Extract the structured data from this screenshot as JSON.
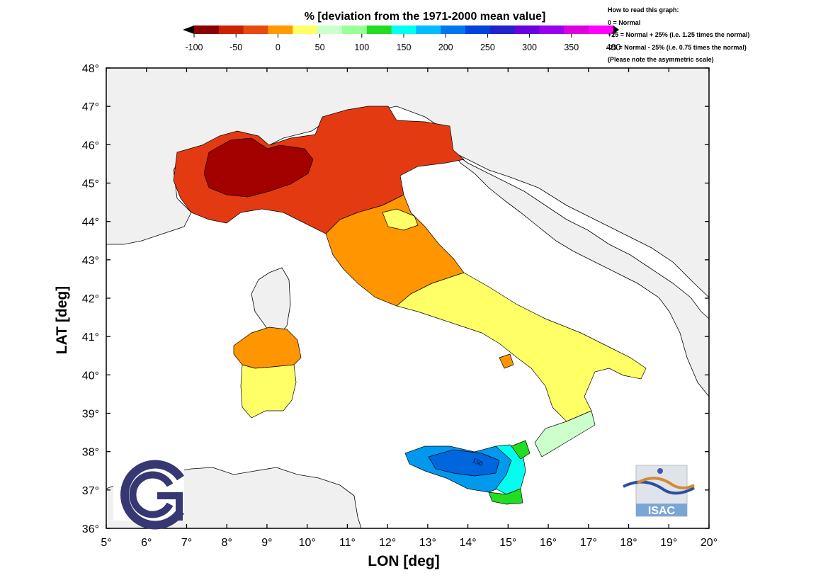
{
  "colorbar": {
    "title": "% [deviation from the 1971-2000 mean value]",
    "ticks": [
      "-100",
      "-50",
      "0",
      "50",
      "100",
      "150",
      "200",
      "250",
      "300",
      "350",
      "400"
    ],
    "colors": [
      "#8b0000",
      "#cc2200",
      "#e84a10",
      "#ff9a00",
      "#ffff66",
      "#ccffcc",
      "#99ff99",
      "#22dd22",
      "#00ffee",
      "#00bbff",
      "#0077ee",
      "#0044dd",
      "#2222cc",
      "#6a00dd",
      "#9900ee",
      "#dd00dd",
      "#ff00ff"
    ]
  },
  "note": {
    "line1": "How to read this graph:",
    "line2": "0 = Normal",
    "line3": "+25 = Normal + 25% (i.e. 1.25 times the normal)",
    "line4": "-25 = Normal - 25% (i.e. 0.75 times the normal)",
    "line5": "(Please note the asymmetric scale)"
  },
  "axes": {
    "x_label": "LON [deg]",
    "y_label": "LAT [deg]",
    "x_ticks": [
      "5°",
      "6°",
      "7°",
      "8°",
      "9°",
      "10°",
      "11°",
      "12°",
      "13°",
      "14°",
      "15°",
      "16°",
      "17°",
      "18°",
      "19°",
      "20°"
    ],
    "y_ticks": [
      "48°",
      "47°",
      "46°",
      "45°",
      "44°",
      "43°",
      "42°",
      "41°",
      "40°",
      "39°",
      "38°",
      "37°",
      "36°"
    ],
    "x_range": [
      5,
      20
    ],
    "y_range": [
      36,
      48
    ]
  },
  "map": {
    "contour_label": "150",
    "land_color": "#f0f0f0",
    "sea_color": "#ffffff"
  },
  "logos": {
    "cnr": "cnr-logo",
    "isac_text": "ISAC"
  }
}
